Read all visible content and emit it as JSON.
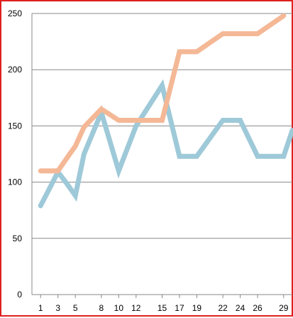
{
  "chart_data": {
    "type": "line",
    "x": [
      1,
      2,
      3,
      4,
      5,
      6,
      8,
      10,
      12,
      15,
      17,
      19,
      22,
      24,
      26,
      29,
      30
    ],
    "x_tick_labels": [
      "1",
      "3",
      "5",
      "8",
      "10",
      "12",
      "15",
      "17",
      "19",
      "22",
      "24",
      "26",
      "29"
    ],
    "y_tick_labels": [
      "0",
      "50",
      "100",
      "150",
      "200",
      "250"
    ],
    "ylim": [
      0,
      250
    ],
    "grid": true,
    "series": [
      {
        "color": "#9ec9d8",
        "values": [
          79,
          94,
          109,
          99,
          88,
          125,
          162,
          110,
          150,
          186,
          123,
          123,
          155,
          155,
          123,
          123,
          146
        ]
      },
      {
        "color": "#f4b896",
        "values": [
          110,
          110,
          110,
          121,
          132,
          149,
          165,
          155,
          155,
          155,
          216,
          216,
          232,
          232,
          232,
          248,
          null
        ]
      }
    ]
  }
}
